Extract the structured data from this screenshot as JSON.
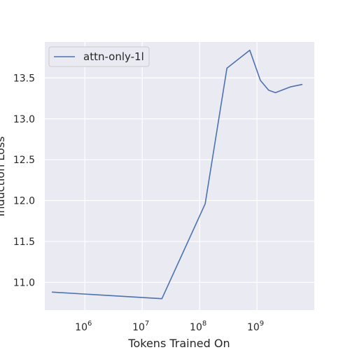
{
  "chart_data": {
    "type": "line",
    "xscale": "log",
    "xlabel": "Tokens Trained On",
    "ylabel": "Induction Loss",
    "xlim": [
      200000,
      10000000000
    ],
    "ylim": [
      10.66,
      13.94
    ],
    "x_ticks": [
      {
        "value": 1000000,
        "base": "10",
        "exp": "6"
      },
      {
        "value": 10000000,
        "base": "10",
        "exp": "7"
      },
      {
        "value": 100000000,
        "base": "10",
        "exp": "8"
      },
      {
        "value": 1000000000,
        "base": "10",
        "exp": "9"
      }
    ],
    "y_ticks": [
      {
        "value": 11.0,
        "label": "11.0"
      },
      {
        "value": 11.5,
        "label": "11.5"
      },
      {
        "value": 12.0,
        "label": "12.0"
      },
      {
        "value": 12.5,
        "label": "12.5"
      },
      {
        "value": 13.0,
        "label": "13.0"
      },
      {
        "value": 13.5,
        "label": "13.5"
      }
    ],
    "grid": true,
    "legend_position": "top-left",
    "background": "#eaeaf2",
    "series": [
      {
        "name": "attn-only-1l",
        "color": "#4c72b0",
        "x": [
          270000,
          22000000,
          125000000,
          300000000,
          750000000,
          1150000000,
          1600000000,
          2100000000,
          3800000000,
          6100000000
        ],
        "y": [
          10.88,
          10.8,
          11.96,
          13.62,
          13.84,
          13.47,
          13.35,
          13.32,
          13.39,
          13.42
        ]
      }
    ]
  }
}
